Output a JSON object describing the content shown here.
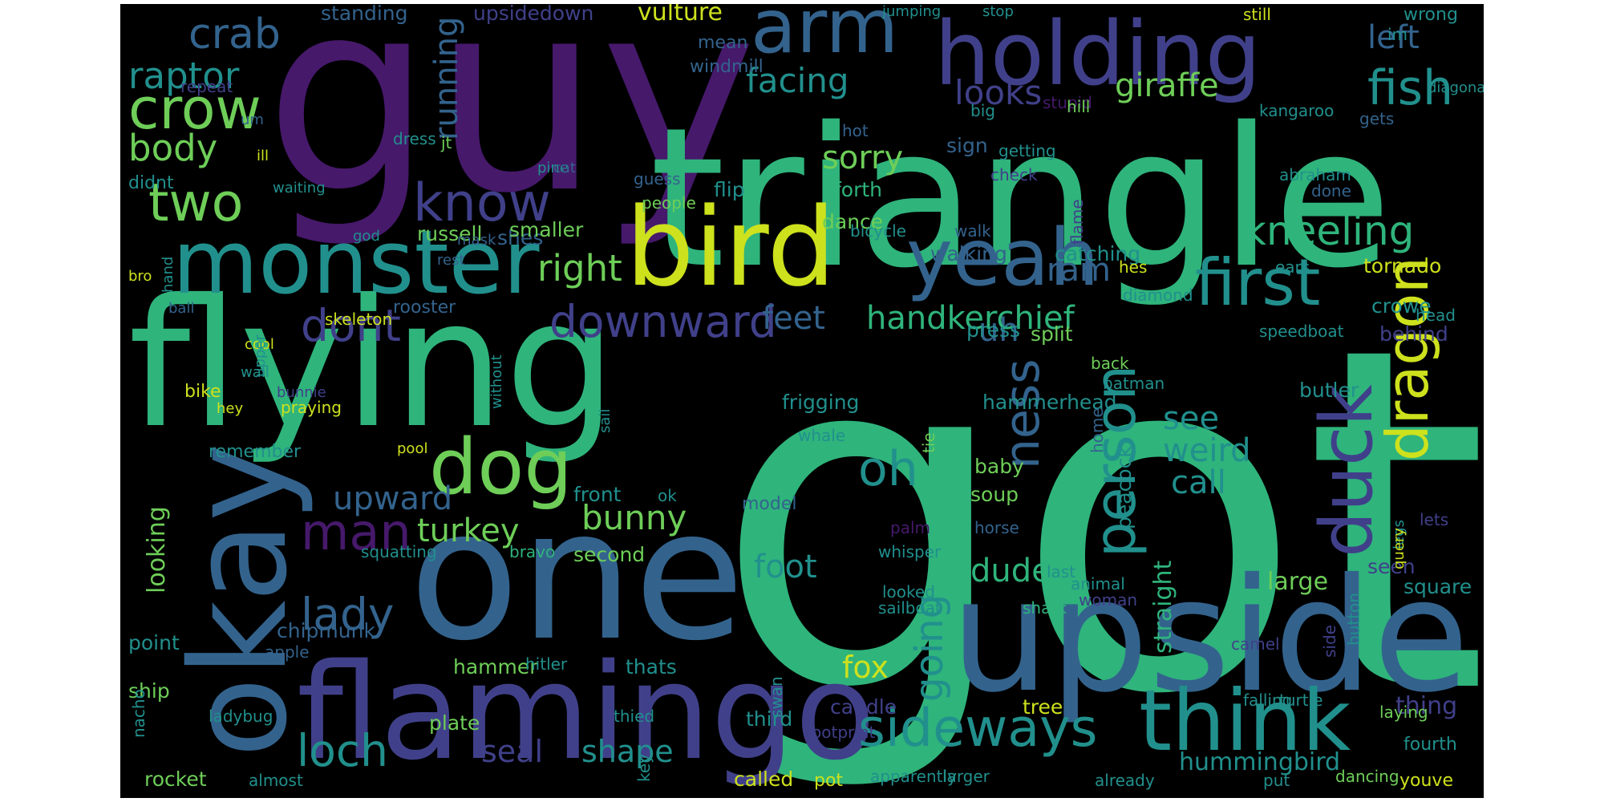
{
  "palette": {
    "background": "#000000",
    "purple": "#46196b",
    "indigo": "#40408a",
    "blue": "#33638d",
    "teal": "#21908d",
    "green": "#2fb47c",
    "lime": "#6ece58",
    "yellow": "#cde11d"
  },
  "words": [
    {
      "text": "got",
      "color": "green"
    },
    {
      "text": "guy",
      "color": "purple"
    },
    {
      "text": "triangle",
      "color": "green"
    },
    {
      "text": "flying",
      "color": "green"
    },
    {
      "text": "one",
      "color": "blue"
    },
    {
      "text": "upside",
      "color": "blue"
    },
    {
      "text": "flamingo",
      "color": "indigo"
    },
    {
      "text": "bird",
      "color": "yellow"
    },
    {
      "text": "okay",
      "color": "blue"
    },
    {
      "text": "holding",
      "color": "indigo"
    },
    {
      "text": "monster",
      "color": "teal"
    },
    {
      "text": "think",
      "color": "teal"
    },
    {
      "text": "yeah",
      "color": "blue"
    },
    {
      "text": "arm",
      "color": "blue"
    },
    {
      "text": "dog",
      "color": "lime"
    },
    {
      "text": "duck",
      "color": "indigo"
    },
    {
      "text": "sideways",
      "color": "teal"
    },
    {
      "text": "first",
      "color": "teal"
    },
    {
      "text": "person",
      "color": "teal"
    },
    {
      "text": "dragon",
      "color": "yellow"
    },
    {
      "text": "crow",
      "color": "lime"
    },
    {
      "text": "two",
      "color": "lime"
    },
    {
      "text": "know",
      "color": "indigo"
    },
    {
      "text": "man",
      "color": "purple"
    },
    {
      "text": "oh",
      "color": "teal"
    },
    {
      "text": "ness",
      "color": "blue"
    },
    {
      "text": "fish",
      "color": "teal"
    },
    {
      "text": "kneeling",
      "color": "green"
    },
    {
      "text": "downward",
      "color": "indigo"
    },
    {
      "text": "loch",
      "color": "teal"
    },
    {
      "text": "lady",
      "color": "blue"
    },
    {
      "text": "dont",
      "color": "indigo"
    },
    {
      "text": "crab",
      "color": "blue"
    },
    {
      "text": "raptor",
      "color": "teal"
    },
    {
      "text": "body",
      "color": "lime"
    },
    {
      "text": "looks",
      "color": "indigo"
    },
    {
      "text": "facing",
      "color": "teal"
    },
    {
      "text": "right",
      "color": "lime"
    },
    {
      "text": "sorry",
      "color": "lime"
    },
    {
      "text": "feet",
      "color": "blue"
    },
    {
      "text": "going",
      "color": "teal"
    },
    {
      "text": "uh",
      "color": "blue"
    },
    {
      "text": "ram",
      "color": "blue"
    },
    {
      "text": "giraffe",
      "color": "lime"
    },
    {
      "text": "left",
      "color": "blue"
    },
    {
      "text": "handkerchief",
      "color": "green"
    },
    {
      "text": "see",
      "color": "teal"
    },
    {
      "text": "weird",
      "color": "teal"
    },
    {
      "text": "call",
      "color": "teal"
    },
    {
      "text": "bunny",
      "color": "lime"
    },
    {
      "text": "turkey",
      "color": "lime"
    },
    {
      "text": "upward",
      "color": "blue"
    },
    {
      "text": "foot",
      "color": "teal"
    },
    {
      "text": "dude",
      "color": "green"
    },
    {
      "text": "shape",
      "color": "teal"
    },
    {
      "text": "seal",
      "color": "indigo"
    },
    {
      "text": "fox",
      "color": "yellow"
    },
    {
      "text": "running",
      "color": "blue"
    },
    {
      "text": "looking",
      "color": "lime"
    },
    {
      "text": "vulture",
      "color": "yellow"
    },
    {
      "text": "standing",
      "color": "blue"
    },
    {
      "text": "upsidedown",
      "color": "indigo"
    },
    {
      "text": "hummingbird",
      "color": "teal"
    },
    {
      "text": "large",
      "color": "lime"
    },
    {
      "text": "thing",
      "color": "indigo"
    },
    {
      "text": "straight",
      "color": "green"
    },
    {
      "text": "butler",
      "color": "teal"
    },
    {
      "text": "tornado",
      "color": "yellow"
    },
    {
      "text": "crowe",
      "color": "teal"
    },
    {
      "text": "behind",
      "color": "indigo"
    },
    {
      "text": "split",
      "color": "lime"
    },
    {
      "text": "peacock",
      "color": "teal"
    },
    {
      "text": "walking",
      "color": "blue"
    },
    {
      "text": "catching",
      "color": "teal"
    },
    {
      "text": "russell",
      "color": "lime"
    },
    {
      "text": "shes",
      "color": "blue"
    },
    {
      "text": "smaller",
      "color": "lime"
    },
    {
      "text": "dance",
      "color": "lime"
    },
    {
      "text": "flip",
      "color": "teal"
    },
    {
      "text": "forth",
      "color": "green"
    },
    {
      "text": "bicycle",
      "color": "teal"
    },
    {
      "text": "walk",
      "color": "blue"
    },
    {
      "text": "sign",
      "color": "blue"
    },
    {
      "text": "check",
      "color": "indigo"
    },
    {
      "text": "hot",
      "color": "blue"
    },
    {
      "text": "guess",
      "color": "blue"
    },
    {
      "text": "people",
      "color": "lime"
    },
    {
      "text": "rooster",
      "color": "blue"
    },
    {
      "text": "remember",
      "color": "teal"
    },
    {
      "text": "model",
      "color": "blue"
    },
    {
      "text": "front",
      "color": "teal"
    },
    {
      "text": "ok",
      "color": "teal"
    },
    {
      "text": "second",
      "color": "lime"
    },
    {
      "text": "squatting",
      "color": "teal"
    },
    {
      "text": "bravo",
      "color": "green"
    },
    {
      "text": "chipmunk",
      "color": "blue"
    },
    {
      "text": "point",
      "color": "teal"
    },
    {
      "text": "apple",
      "color": "blue"
    },
    {
      "text": "ship",
      "color": "lime"
    },
    {
      "text": "ladybug",
      "color": "teal"
    },
    {
      "text": "hammer",
      "color": "lime"
    },
    {
      "text": "hitler",
      "color": "teal"
    },
    {
      "text": "thats",
      "color": "teal"
    },
    {
      "text": "plate",
      "color": "lime"
    },
    {
      "text": "third",
      "color": "teal"
    },
    {
      "text": "rocket",
      "color": "lime"
    },
    {
      "text": "almost",
      "color": "teal"
    },
    {
      "text": "called",
      "color": "yellow"
    },
    {
      "text": "pot",
      "color": "yellow"
    },
    {
      "text": "apparently",
      "color": "teal"
    },
    {
      "text": "larger",
      "color": "teal"
    },
    {
      "text": "already",
      "color": "teal"
    },
    {
      "text": "put",
      "color": "teal"
    },
    {
      "text": "dancing",
      "color": "lime"
    },
    {
      "text": "youve",
      "color": "yellow"
    },
    {
      "text": "fourth",
      "color": "teal"
    },
    {
      "text": "laying",
      "color": "lime"
    },
    {
      "text": "turtle",
      "color": "teal"
    },
    {
      "text": "falling",
      "color": "teal"
    },
    {
      "text": "tree",
      "color": "yellow"
    },
    {
      "text": "candle",
      "color": "indigo"
    },
    {
      "text": "footprint",
      "color": "indigo"
    },
    {
      "text": "swan",
      "color": "teal"
    },
    {
      "text": "thied",
      "color": "teal"
    },
    {
      "text": "nacho",
      "color": "teal"
    },
    {
      "text": "key",
      "color": "teal"
    },
    {
      "text": "side",
      "color": "indigo"
    },
    {
      "text": "camel",
      "color": "indigo"
    },
    {
      "text": "button",
      "color": "teal"
    },
    {
      "text": "last",
      "color": "teal"
    },
    {
      "text": "animal",
      "color": "teal"
    },
    {
      "text": "woman",
      "color": "indigo"
    },
    {
      "text": "shark",
      "color": "green"
    },
    {
      "text": "sailboat",
      "color": "teal"
    },
    {
      "text": "whisper",
      "color": "teal"
    },
    {
      "text": "looked",
      "color": "teal"
    },
    {
      "text": "palm",
      "color": "purple"
    },
    {
      "text": "horse",
      "color": "blue"
    },
    {
      "text": "tie",
      "color": "lime"
    },
    {
      "text": "soup",
      "color": "lime"
    },
    {
      "text": "whale",
      "color": "teal"
    },
    {
      "text": "baby",
      "color": "lime"
    },
    {
      "text": "hammerhead",
      "color": "teal"
    },
    {
      "text": "frigging",
      "color": "teal"
    },
    {
      "text": "home",
      "color": "blue"
    },
    {
      "text": "batman",
      "color": "teal"
    },
    {
      "text": "back",
      "color": "lime"
    },
    {
      "text": "square",
      "color": "teal"
    },
    {
      "text": "seen",
      "color": "indigo"
    },
    {
      "text": "lets",
      "color": "indigo"
    },
    {
      "text": "legs",
      "color": "teal"
    },
    {
      "text": "query",
      "color": "yellow"
    },
    {
      "text": "press",
      "color": "teal"
    },
    {
      "text": "speedboat",
      "color": "teal"
    },
    {
      "text": "head",
      "color": "teal"
    },
    {
      "text": "diamond",
      "color": "teal"
    },
    {
      "text": "hes",
      "color": "yellow"
    },
    {
      "text": "ears",
      "color": "teal"
    },
    {
      "text": "flame",
      "color": "indigo"
    },
    {
      "text": "abraham",
      "color": "teal"
    },
    {
      "text": "done",
      "color": "blue"
    },
    {
      "text": "kangaroo",
      "color": "teal"
    },
    {
      "text": "gets",
      "color": "blue"
    },
    {
      "text": "big",
      "color": "teal"
    },
    {
      "text": "getting",
      "color": "teal"
    },
    {
      "text": "stupid",
      "color": "purple"
    },
    {
      "text": "hill",
      "color": "lime"
    },
    {
      "text": "diagonally",
      "color": "teal"
    },
    {
      "text": "im",
      "color": "teal"
    },
    {
      "text": "wrong",
      "color": "teal"
    },
    {
      "text": "still",
      "color": "yellow"
    },
    {
      "text": "stop",
      "color": "teal"
    },
    {
      "text": "jumping",
      "color": "teal"
    },
    {
      "text": "mean",
      "color": "blue"
    },
    {
      "text": "windmill",
      "color": "blue"
    },
    {
      "text": "repeat",
      "color": "indigo"
    },
    {
      "text": "um",
      "color": "blue"
    },
    {
      "text": "dress",
      "color": "teal"
    },
    {
      "text": "jt",
      "color": "lime"
    },
    {
      "text": "ill",
      "color": "yellow"
    },
    {
      "text": "didnt",
      "color": "teal"
    },
    {
      "text": "waiting",
      "color": "teal"
    },
    {
      "text": "pine",
      "color": "teal"
    },
    {
      "text": "cat",
      "color": "blue"
    },
    {
      "text": "god",
      "color": "teal"
    },
    {
      "text": "mask",
      "color": "blue"
    },
    {
      "text": "rest",
      "color": "blue"
    },
    {
      "text": "bro",
      "color": "yellow"
    },
    {
      "text": "hand",
      "color": "teal"
    },
    {
      "text": "ball",
      "color": "blue"
    },
    {
      "text": "skeleton",
      "color": "yellow"
    },
    {
      "text": "cool",
      "color": "yellow"
    },
    {
      "text": "wall",
      "color": "teal"
    },
    {
      "text": "bike",
      "color": "yellow"
    },
    {
      "text": "bunnie",
      "color": "indigo"
    },
    {
      "text": "praying",
      "color": "yellow"
    },
    {
      "text": "hey",
      "color": "yellow"
    },
    {
      "text": "upper",
      "color": "teal"
    },
    {
      "text": "without",
      "color": "teal"
    },
    {
      "text": "sail",
      "color": "teal"
    },
    {
      "text": "pool",
      "color": "yellow"
    }
  ]
}
